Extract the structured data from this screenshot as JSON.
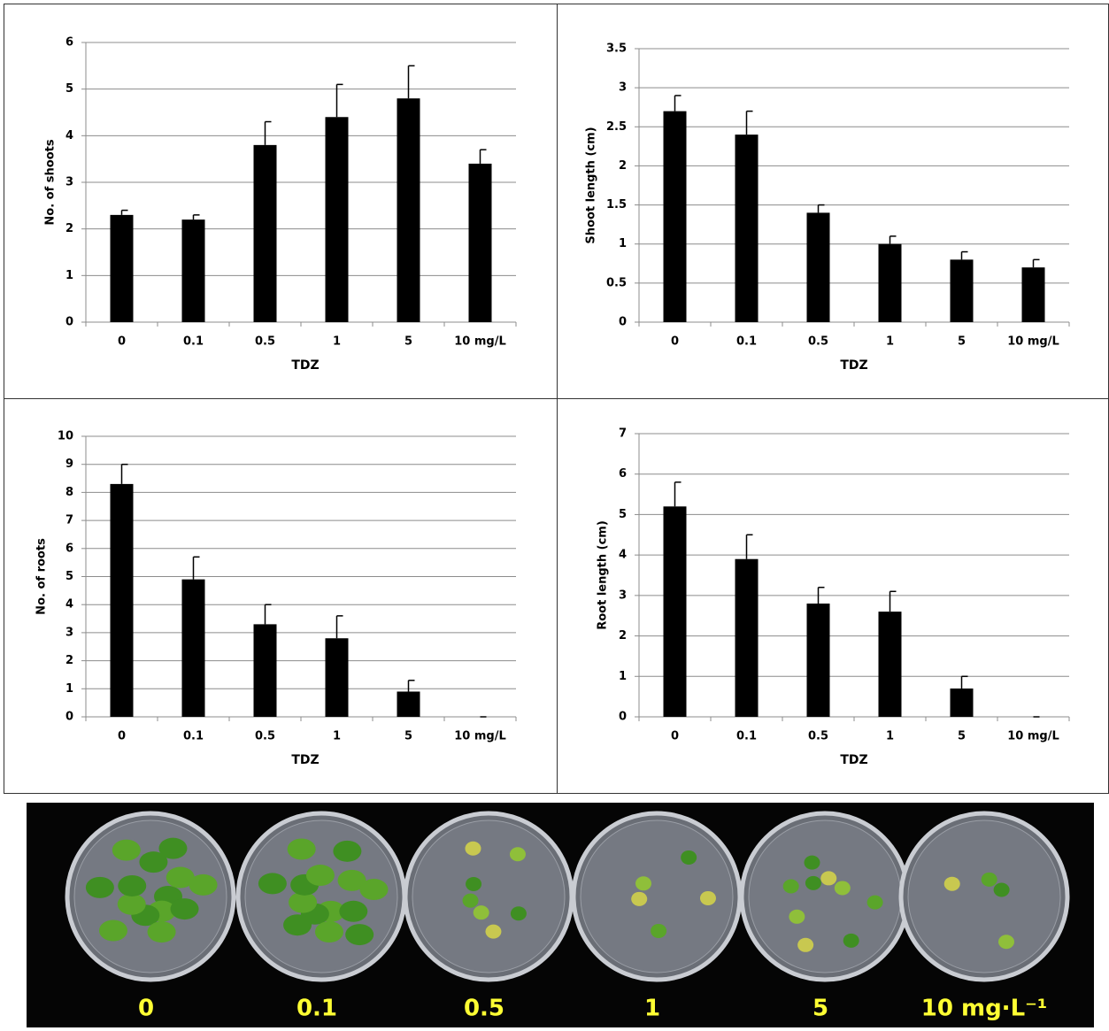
{
  "chart_data": [
    {
      "type": "bar",
      "y_label": "No. of shoots",
      "x_label": "TDZ",
      "categories": [
        "0",
        "0.1",
        "0.5",
        "1",
        "5",
        "10 mg/L"
      ],
      "values": [
        2.3,
        2.2,
        3.8,
        4.4,
        4.8,
        3.4
      ],
      "errors": [
        0.1,
        0.1,
        0.5,
        0.7,
        0.7,
        0.3
      ],
      "color": "#000000",
      "ylim": [
        0,
        6
      ],
      "yticks": [
        0,
        1,
        2,
        3,
        4,
        5,
        6
      ],
      "grid": true
    },
    {
      "type": "bar",
      "y_label": "Shoot length (cm)",
      "x_label": "TDZ",
      "categories": [
        "0",
        "0.1",
        "0.5",
        "1",
        "5",
        "10 mg/L"
      ],
      "values": [
        2.7,
        2.4,
        1.4,
        1.0,
        0.8,
        0.7
      ],
      "errors": [
        0.2,
        0.3,
        0.1,
        0.1,
        0.1,
        0.1
      ],
      "color": "#000000",
      "ylim": [
        0,
        3.5
      ],
      "yticks": [
        0,
        0.5,
        1,
        1.5,
        2,
        2.5,
        3,
        3.5
      ],
      "grid": true
    },
    {
      "type": "bar",
      "y_label": "No. of roots",
      "x_label": "TDZ",
      "categories": [
        "0",
        "0.1",
        "0.5",
        "1",
        "5",
        "10 mg/L"
      ],
      "values": [
        8.3,
        4.9,
        3.3,
        2.8,
        0.9,
        0
      ],
      "errors": [
        0.7,
        0.8,
        0.7,
        0.8,
        0.4,
        0
      ],
      "color": "#000000",
      "ylim": [
        0,
        10
      ],
      "yticks": [
        0,
        1,
        2,
        3,
        4,
        5,
        6,
        7,
        8,
        9,
        10
      ],
      "grid": true
    },
    {
      "type": "bar",
      "y_label": "Root length (cm)",
      "x_label": "TDZ",
      "categories": [
        "0",
        "0.1",
        "0.5",
        "1",
        "5",
        "10 mg/L"
      ],
      "values": [
        5.2,
        3.9,
        2.8,
        2.6,
        0.7,
        0
      ],
      "errors": [
        0.6,
        0.6,
        0.4,
        0.5,
        0.3,
        0
      ],
      "color": "#000000",
      "ylim": [
        0,
        7
      ],
      "yticks": [
        0,
        1,
        2,
        3,
        4,
        5,
        6,
        7
      ],
      "grid": true
    }
  ],
  "photo": {
    "labels": [
      "0",
      "0.1",
      "0.5",
      "1",
      "5",
      "10 mg·L⁻¹"
    ]
  }
}
